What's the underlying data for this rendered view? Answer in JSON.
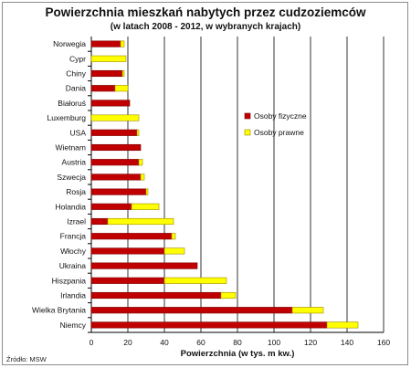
{
  "chart_data": {
    "type": "bar",
    "orientation": "horizontal",
    "stacked": true,
    "title": "Powierzchnia mieszkań nabytych przez cudzoziemców",
    "subtitle": "(w latach 2008 - 2012,  w wybranych krajach)",
    "xlabel": "Powierzchnia (w tys. m kw.)",
    "ylabel": "",
    "xlim": [
      0,
      160
    ],
    "x_ticks": [
      "0",
      "20",
      "40",
      "60",
      "80",
      "100",
      "120",
      "140",
      "160"
    ],
    "grid": "vertical",
    "legend_position": "right",
    "categories": [
      "Norwegia",
      "Cypr",
      "Chiny",
      "Dania",
      "Białoruś",
      "Luxemburg",
      "USA",
      "Wietnam",
      "Austria",
      "Szwecja",
      "Rosja",
      "Holandia",
      "Izrael",
      "Francja",
      "Włochy",
      "Ukraina",
      "Hiszpania",
      "Irlandia",
      "Wielka Brytania",
      "Niemcy"
    ],
    "series": [
      {
        "name": "Osoby fizyczne",
        "color": "#c00000",
        "values": [
          16,
          0,
          17,
          13,
          21,
          0,
          25,
          27,
          26,
          27,
          30,
          22,
          9,
          44,
          40,
          58,
          40,
          71,
          110,
          129
        ]
      },
      {
        "name": "Osoby prawne",
        "color": "#ffff00",
        "values": [
          2,
          19,
          1,
          7,
          0,
          26,
          1,
          0,
          2,
          2,
          1,
          15,
          36,
          2,
          11,
          0,
          34,
          8,
          17,
          17
        ]
      }
    ]
  },
  "source": "Źródło: MSW",
  "colors": {
    "axis": "#000000",
    "grid": "#000000",
    "bar_outline": "#7f0000"
  }
}
